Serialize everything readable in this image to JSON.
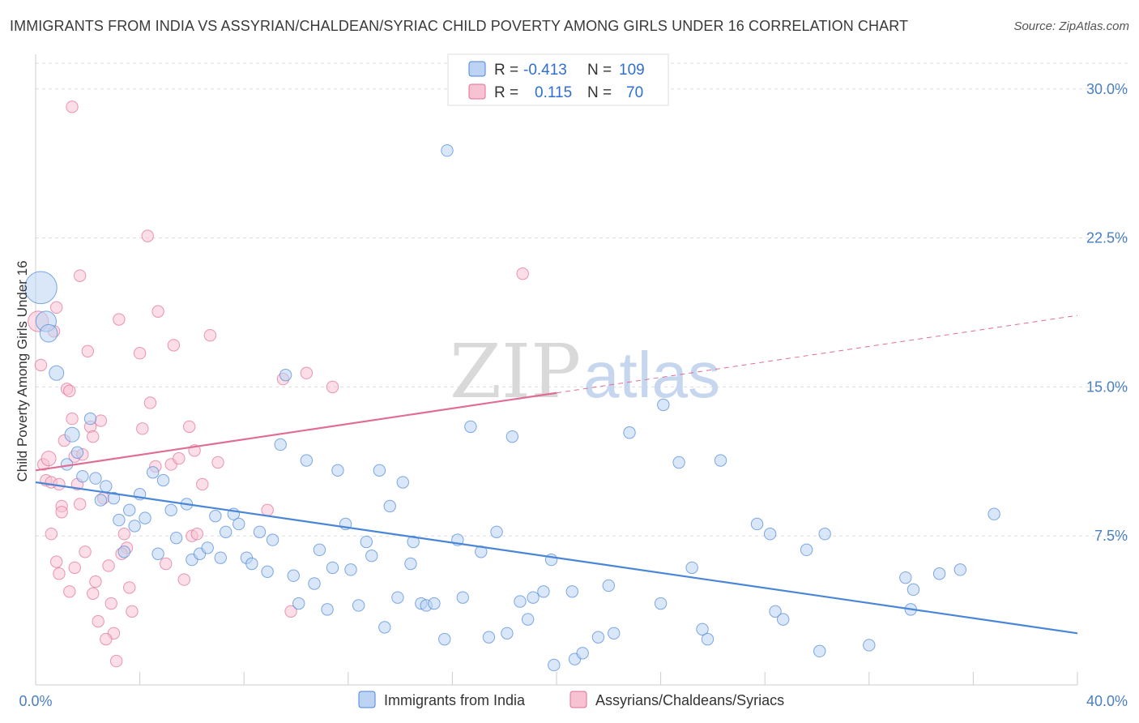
{
  "title": "IMMIGRANTS FROM INDIA VS ASSYRIAN/CHALDEAN/SYRIAC CHILD POVERTY AMONG GIRLS UNDER 16 CORRELATION CHART",
  "source": "Source: ZipAtlas.com",
  "watermark": {
    "zip": "ZIP",
    "atlas": "atlas"
  },
  "colors": {
    "blue": "#4a86d8",
    "blue_fill": "#bcd3f3",
    "pink": "#e06d96",
    "pink_fill": "#f7c3d3",
    "grid": "#dddddd"
  },
  "legend": {
    "rows": [
      {
        "r_label": "R =",
        "r_value": "-0.413",
        "n_label": "N =",
        "n_value": "109"
      },
      {
        "r_label": "R =",
        "r_value": "0.115",
        "n_label": "N =",
        "n_value": "70"
      }
    ]
  },
  "chart_data": {
    "type": "scatter",
    "xlabel": "",
    "ylabel": "Child Poverty Among Girls Under 16",
    "xlim": [
      0,
      40
    ],
    "ylim": [
      0,
      31.5
    ],
    "x_tick_labels": [
      "0.0%",
      "40.0%"
    ],
    "y_ticks": [
      7.5,
      15.0,
      22.5,
      30.0
    ],
    "y_tick_labels": [
      "7.5%",
      "15.0%",
      "22.5%",
      "30.0%"
    ],
    "grid": "horizontal dashed",
    "legend_position": "bottom",
    "series": [
      {
        "name": "Immigrants from India",
        "color": "#4a86d8",
        "trend": {
          "x": [
            0,
            40
          ],
          "y": [
            10.2,
            2.6
          ],
          "dashed_from": null
        },
        "points": [
          [
            0.2,
            20.0,
            2.2
          ],
          [
            0.4,
            18.3,
            1.4
          ],
          [
            0.5,
            17.7,
            1.2
          ],
          [
            0.8,
            15.7,
            1.0
          ],
          [
            1.4,
            12.6,
            1.0
          ],
          [
            1.6,
            11.7,
            0.8
          ],
          [
            1.2,
            11.1,
            0.8
          ],
          [
            2.1,
            13.4,
            0.8
          ],
          [
            1.8,
            10.5,
            0.8
          ],
          [
            2.3,
            10.4,
            0.8
          ],
          [
            2.7,
            10.0,
            0.8
          ],
          [
            2.5,
            9.3,
            0.8
          ],
          [
            3.0,
            9.4,
            0.8
          ],
          [
            3.2,
            8.3,
            0.8
          ],
          [
            3.6,
            8.8,
            0.8
          ],
          [
            4.0,
            9.6,
            0.8
          ],
          [
            3.8,
            8.0,
            0.8
          ],
          [
            4.2,
            8.4,
            0.8
          ],
          [
            4.5,
            10.7,
            0.8
          ],
          [
            4.9,
            10.3,
            0.8
          ],
          [
            5.2,
            8.8,
            0.8
          ],
          [
            5.4,
            7.4,
            0.8
          ],
          [
            5.8,
            9.1,
            0.8
          ],
          [
            4.7,
            6.6,
            0.8
          ],
          [
            3.4,
            6.7,
            0.8
          ],
          [
            6.0,
            6.3,
            0.8
          ],
          [
            6.3,
            6.6,
            0.8
          ],
          [
            6.6,
            6.9,
            0.8
          ],
          [
            6.9,
            8.5,
            0.8
          ],
          [
            7.3,
            7.7,
            0.8
          ],
          [
            7.1,
            6.4,
            0.8
          ],
          [
            7.6,
            8.6,
            0.8
          ],
          [
            7.8,
            8.1,
            0.8
          ],
          [
            8.1,
            6.4,
            0.8
          ],
          [
            8.3,
            6.1,
            0.8
          ],
          [
            8.6,
            7.7,
            0.8
          ],
          [
            8.9,
            5.7,
            0.8
          ],
          [
            9.1,
            7.3,
            0.8
          ],
          [
            9.4,
            12.1,
            0.8
          ],
          [
            9.6,
            15.6,
            0.8
          ],
          [
            9.9,
            5.5,
            0.8
          ],
          [
            10.1,
            4.1,
            0.8
          ],
          [
            10.4,
            11.3,
            0.8
          ],
          [
            10.7,
            5.1,
            0.8
          ],
          [
            10.9,
            6.8,
            0.8
          ],
          [
            11.2,
            3.8,
            0.8
          ],
          [
            11.4,
            5.9,
            0.8
          ],
          [
            11.6,
            10.8,
            0.8
          ],
          [
            11.9,
            8.1,
            0.8
          ],
          [
            12.1,
            5.8,
            0.8
          ],
          [
            12.4,
            4.0,
            0.8
          ],
          [
            12.7,
            7.2,
            0.8
          ],
          [
            12.9,
            6.5,
            0.8
          ],
          [
            13.2,
            10.8,
            0.8
          ],
          [
            13.4,
            2.9,
            0.8
          ],
          [
            13.6,
            9.0,
            0.8
          ],
          [
            13.9,
            4.4,
            0.8
          ],
          [
            14.1,
            10.2,
            0.8
          ],
          [
            14.4,
            6.1,
            0.8
          ],
          [
            14.5,
            7.2,
            0.8
          ],
          [
            14.8,
            4.1,
            0.8
          ],
          [
            15.0,
            4.0,
            0.8
          ],
          [
            15.3,
            4.1,
            0.8
          ],
          [
            15.7,
            2.3,
            0.8
          ],
          [
            15.8,
            26.9,
            0.8
          ],
          [
            16.2,
            7.3,
            0.8
          ],
          [
            16.4,
            4.4,
            0.8
          ],
          [
            16.7,
            13.0,
            0.8
          ],
          [
            17.1,
            6.7,
            0.8
          ],
          [
            17.4,
            2.4,
            0.8
          ],
          [
            17.7,
            7.7,
            0.8
          ],
          [
            18.1,
            2.6,
            0.8
          ],
          [
            18.3,
            12.5,
            0.8
          ],
          [
            18.6,
            4.2,
            0.8
          ],
          [
            18.9,
            3.3,
            0.8
          ],
          [
            19.1,
            4.4,
            0.8
          ],
          [
            19.5,
            4.7,
            0.8
          ],
          [
            19.8,
            6.3,
            0.8
          ],
          [
            19.9,
            1.0,
            0.8
          ],
          [
            20.6,
            4.7,
            0.8
          ],
          [
            20.7,
            1.3,
            0.8
          ],
          [
            21.0,
            1.6,
            0.8
          ],
          [
            21.6,
            2.4,
            0.8
          ],
          [
            22.0,
            5.0,
            0.8
          ],
          [
            22.2,
            2.6,
            0.8
          ],
          [
            22.8,
            12.7,
            0.8
          ],
          [
            24.1,
            14.1,
            0.8
          ],
          [
            24.0,
            4.1,
            0.8
          ],
          [
            24.7,
            11.2,
            0.8
          ],
          [
            25.2,
            5.9,
            0.8
          ],
          [
            25.6,
            2.8,
            0.8
          ],
          [
            25.8,
            2.3,
            0.8
          ],
          [
            26.3,
            11.3,
            0.8
          ],
          [
            27.7,
            8.1,
            0.8
          ],
          [
            28.2,
            7.6,
            0.8
          ],
          [
            28.4,
            3.7,
            0.8
          ],
          [
            28.7,
            3.3,
            0.8
          ],
          [
            29.6,
            6.8,
            0.8
          ],
          [
            30.1,
            1.7,
            0.8
          ],
          [
            30.3,
            7.6,
            0.8
          ],
          [
            32.0,
            2.0,
            0.8
          ],
          [
            33.4,
            5.4,
            0.8
          ],
          [
            33.6,
            3.8,
            0.8
          ],
          [
            33.7,
            4.8,
            0.8
          ],
          [
            34.7,
            5.6,
            0.8
          ],
          [
            35.5,
            5.8,
            0.8
          ],
          [
            36.8,
            8.6,
            0.8
          ]
        ]
      },
      {
        "name": "Assyrians/Chaldeans/Syriacs",
        "color": "#e06d96",
        "trend": {
          "x": [
            0,
            40
          ],
          "y": [
            10.8,
            18.6
          ],
          "dashed_from": 20
        },
        "points": [
          [
            0.1,
            18.3,
            1.4
          ],
          [
            0.2,
            16.1,
            0.8
          ],
          [
            0.3,
            11.1,
            0.8
          ],
          [
            0.4,
            10.3,
            0.8
          ],
          [
            0.5,
            11.4,
            1.0
          ],
          [
            0.6,
            10.2,
            0.8
          ],
          [
            0.7,
            17.8,
            0.8
          ],
          [
            0.8,
            19.0,
            0.8
          ],
          [
            0.9,
            10.1,
            0.8
          ],
          [
            1.0,
            9.0,
            0.8
          ],
          [
            1.0,
            8.7,
            0.8
          ],
          [
            1.1,
            12.3,
            0.8
          ],
          [
            1.2,
            14.9,
            0.8
          ],
          [
            1.3,
            14.8,
            0.8
          ],
          [
            1.4,
            13.4,
            0.8
          ],
          [
            1.5,
            11.5,
            0.8
          ],
          [
            1.6,
            10.1,
            0.8
          ],
          [
            1.7,
            9.1,
            0.8
          ],
          [
            1.8,
            11.6,
            0.8
          ],
          [
            1.9,
            6.7,
            0.8
          ],
          [
            2.0,
            16.8,
            0.8
          ],
          [
            2.1,
            13.0,
            0.8
          ],
          [
            2.2,
            12.5,
            0.8
          ],
          [
            1.4,
            29.1,
            0.8
          ],
          [
            1.7,
            20.6,
            0.8
          ],
          [
            2.5,
            13.3,
            0.8
          ],
          [
            2.6,
            9.4,
            0.8
          ],
          [
            2.8,
            6.0,
            0.8
          ],
          [
            2.9,
            4.1,
            0.8
          ],
          [
            3.0,
            2.6,
            0.8
          ],
          [
            3.1,
            1.2,
            0.8
          ],
          [
            3.2,
            18.4,
            0.8
          ],
          [
            3.4,
            7.6,
            0.8
          ],
          [
            3.5,
            6.9,
            0.8
          ],
          [
            3.6,
            4.9,
            0.8
          ],
          [
            3.7,
            3.7,
            0.8
          ],
          [
            4.0,
            16.7,
            0.8
          ],
          [
            4.1,
            12.9,
            0.8
          ],
          [
            4.3,
            22.6,
            0.8
          ],
          [
            4.4,
            14.2,
            0.8
          ],
          [
            4.6,
            11.0,
            0.8
          ],
          [
            4.7,
            18.8,
            0.8
          ],
          [
            5.0,
            6.1,
            0.8
          ],
          [
            5.2,
            11.1,
            0.8
          ],
          [
            5.3,
            17.1,
            0.8
          ],
          [
            5.5,
            11.4,
            0.8
          ],
          [
            5.7,
            5.3,
            0.8
          ],
          [
            5.9,
            13.0,
            0.8
          ],
          [
            6.0,
            7.5,
            0.8
          ],
          [
            6.1,
            11.8,
            0.8
          ],
          [
            6.2,
            7.6,
            0.8
          ],
          [
            6.4,
            10.1,
            0.8
          ],
          [
            6.7,
            17.6,
            0.8
          ],
          [
            7.0,
            11.2,
            0.8
          ],
          [
            8.9,
            8.8,
            0.8
          ],
          [
            9.5,
            15.4,
            0.8
          ],
          [
            9.8,
            3.7,
            0.8
          ],
          [
            10.4,
            15.7,
            0.8
          ],
          [
            11.4,
            15.0,
            0.8
          ],
          [
            18.7,
            20.7,
            0.8
          ],
          [
            0.6,
            7.6,
            0.8
          ],
          [
            0.9,
            5.6,
            0.8
          ],
          [
            1.3,
            4.7,
            0.8
          ],
          [
            2.3,
            5.2,
            0.8
          ],
          [
            2.4,
            3.2,
            0.8
          ],
          [
            2.7,
            2.3,
            0.8
          ],
          [
            3.3,
            6.6,
            0.8
          ],
          [
            1.5,
            5.9,
            0.8
          ],
          [
            0.8,
            6.2,
            0.8
          ],
          [
            2.2,
            4.6,
            0.8
          ]
        ]
      }
    ]
  },
  "bottom_legend": [
    {
      "label": "Immigrants from India"
    },
    {
      "label": "Assyrians/Chaldeans/Syriacs"
    }
  ]
}
